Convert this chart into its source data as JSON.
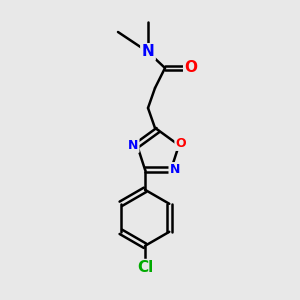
{
  "bg_color": "#e8e8e8",
  "bond_color": "#000000",
  "bond_width": 1.8,
  "atom_colors": {
    "N": "#0000ff",
    "O": "#ff0000",
    "Cl": "#00aa00",
    "C": "#000000"
  },
  "font_size_atom": 11,
  "font_size_small": 9
}
